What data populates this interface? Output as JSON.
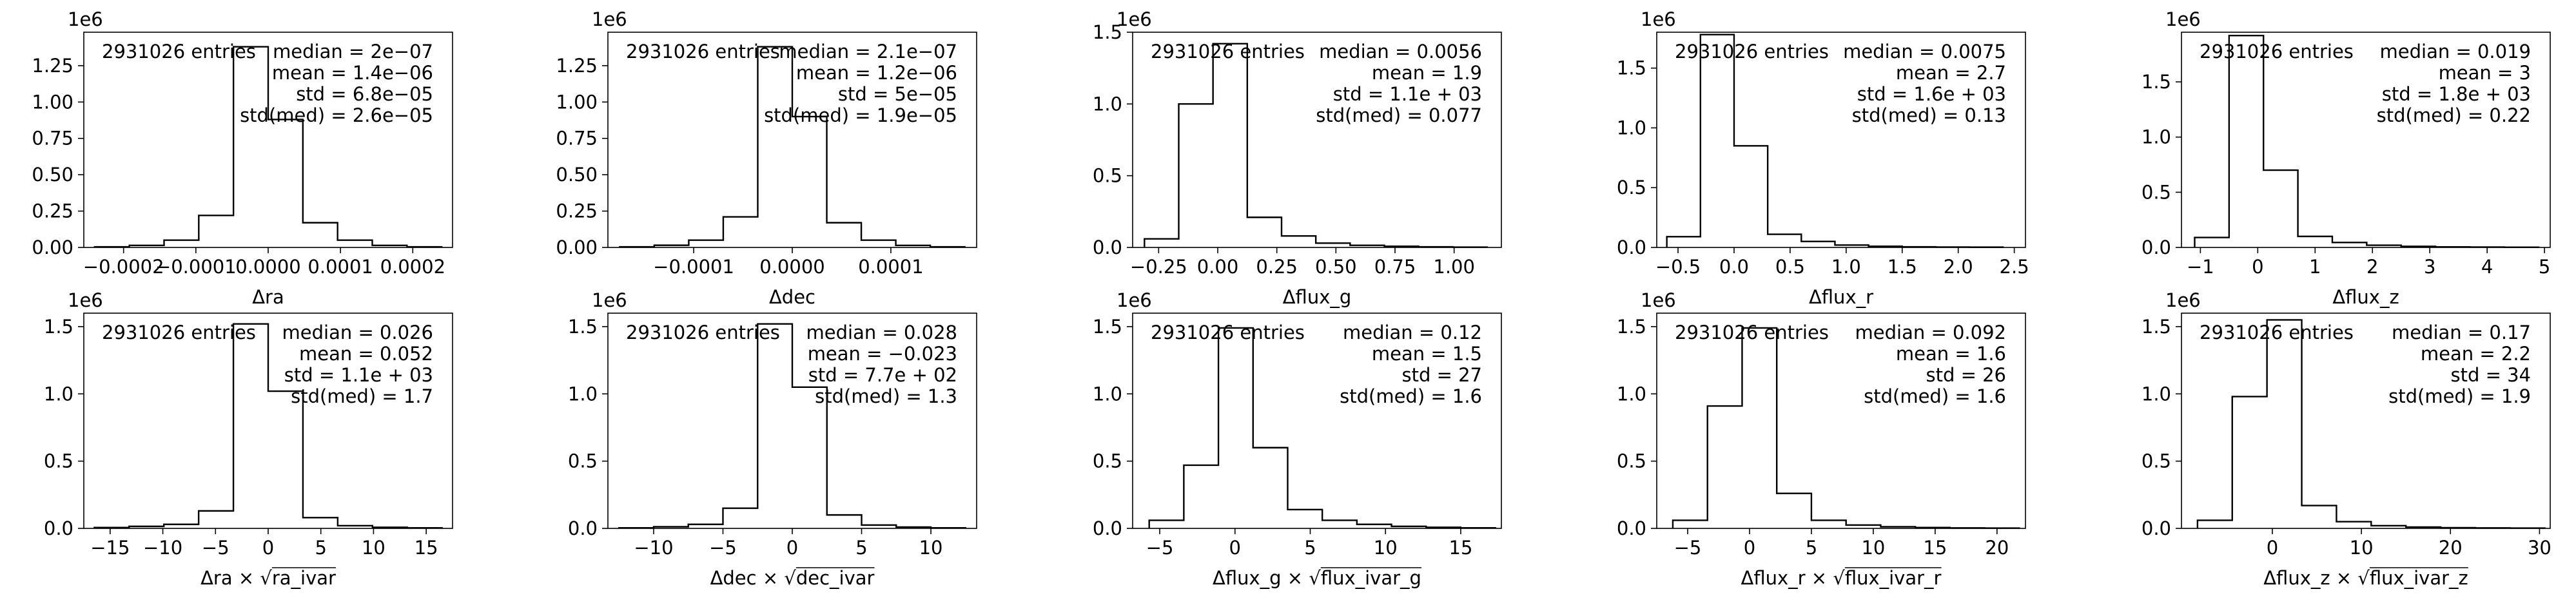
{
  "chart_data": [
    {
      "type": "histogram",
      "xlabel": "Δra",
      "xticks": [
        -0.0002,
        -0.0001,
        0.0,
        0.0001,
        0.0002
      ],
      "xtick_labels": [
        "−0.0002",
        "−0.0001",
        "0.0000",
        "0.0001",
        "0.0002"
      ],
      "xlim": [
        -0.000255,
        0.000255
      ],
      "yticks": [
        0,
        0.25,
        0.5,
        0.75,
        1.0,
        1.25
      ],
      "ytick_labels": [
        "0.00",
        "0.25",
        "0.50",
        "0.75",
        "1.00",
        "1.25"
      ],
      "ylim": [
        0,
        1.48
      ],
      "y_offset_label": "1e6",
      "entries_text": "2931026 entries",
      "stats": [
        "median = 2e−07",
        "mean = 1.4e−06",
        "std = 6.8e−05",
        "std(med) = 2.6e−05"
      ],
      "bin_edges": [
        -0.00024,
        -0.000192,
        -0.000144,
        -9.6e-05,
        -4.8e-05,
        0.0,
        4.8e-05,
        9.6e-05,
        0.000144,
        0.000192,
        0.00024
      ],
      "values": [
        0.004,
        0.014,
        0.05,
        0.22,
        1.38,
        0.88,
        0.17,
        0.05,
        0.014,
        0.004
      ]
    },
    {
      "type": "histogram",
      "xlabel": "Δdec",
      "xticks": [
        -0.0001,
        0.0,
        0.0001
      ],
      "xtick_labels": [
        "−0.0001",
        "0.0000",
        "0.0001"
      ],
      "xlim": [
        -0.000187,
        0.000187
      ],
      "yticks": [
        0,
        0.25,
        0.5,
        0.75,
        1.0,
        1.25
      ],
      "ytick_labels": [
        "0.00",
        "0.25",
        "0.50",
        "0.75",
        "1.00",
        "1.25"
      ],
      "ylim": [
        0,
        1.48
      ],
      "y_offset_label": "1e6",
      "entries_text": "2931026 entries",
      "stats": [
        "median = 2.1e−07",
        "mean = 1.2e−06",
        "std = 5e−05",
        "std(med) = 1.9e−05"
      ],
      "bin_edges": [
        -0.000175,
        -0.00014,
        -0.000105,
        -7e-05,
        -3.5e-05,
        0.0,
        3.5e-05,
        7e-05,
        0.000105,
        0.00014,
        0.000175
      ],
      "values": [
        0.004,
        0.015,
        0.05,
        0.21,
        1.38,
        0.9,
        0.17,
        0.05,
        0.014,
        0.004
      ]
    },
    {
      "type": "histogram",
      "xlabel": "Δflux_g",
      "xticks": [
        -0.25,
        0.0,
        0.25,
        0.5,
        0.75,
        1.0
      ],
      "xtick_labels": [
        "−0.25",
        "0.00",
        "0.25",
        "0.50",
        "0.75",
        "1.00"
      ],
      "xlim": [
        -0.36,
        1.2
      ],
      "yticks": [
        0,
        0.5,
        1.0,
        1.5
      ],
      "ytick_labels": [
        "0.0",
        "0.5",
        "1.0",
        "1.5"
      ],
      "ylim": [
        0,
        1.5
      ],
      "y_offset_label": "1e6",
      "entries_text": "2931026 entries",
      "stats": [
        "median = 0.0056",
        "mean = 1.9",
        "std = 1.1e + 03",
        "std(med) = 0.077"
      ],
      "bin_edges": [
        -0.31,
        -0.165,
        -0.02,
        0.125,
        0.27,
        0.415,
        0.56,
        0.705,
        0.85,
        0.995,
        1.14
      ],
      "values": [
        0.06,
        1.0,
        1.42,
        0.21,
        0.08,
        0.03,
        0.015,
        0.008,
        0.004,
        0.002
      ]
    },
    {
      "type": "histogram",
      "xlabel": "Δflux_r",
      "xticks": [
        -0.5,
        0.0,
        0.5,
        1.0,
        1.5,
        2.0,
        2.5
      ],
      "xtick_labels": [
        "−0.5",
        "0.0",
        "0.5",
        "1.0",
        "1.5",
        "2.0",
        "2.5"
      ],
      "xlim": [
        -0.69,
        2.6
      ],
      "yticks": [
        0,
        0.5,
        1.0,
        1.5
      ],
      "ytick_labels": [
        "0.0",
        "0.5",
        "1.0",
        "1.5"
      ],
      "ylim": [
        0,
        1.8
      ],
      "y_offset_label": "1e6",
      "entries_text": "2931026 entries",
      "stats": [
        "median = 0.0075",
        "mean = 2.7",
        "std = 1.6e + 03",
        "std(med) = 0.13"
      ],
      "bin_edges": [
        -0.6,
        -0.3,
        0.0,
        0.3,
        0.6,
        0.9,
        1.2,
        1.5,
        1.8,
        2.1,
        2.4
      ],
      "values": [
        0.09,
        1.78,
        0.85,
        0.11,
        0.05,
        0.02,
        0.01,
        0.005,
        0.003,
        0.002
      ]
    },
    {
      "type": "histogram",
      "xlabel": "Δflux_z",
      "xticks": [
        -1,
        0,
        1,
        2,
        3,
        4,
        5
      ],
      "xtick_labels": [
        "−1",
        "0",
        "1",
        "2",
        "3",
        "4",
        "5"
      ],
      "xlim": [
        -1.33,
        5.1
      ],
      "yticks": [
        0,
        0.5,
        1.0,
        1.5
      ],
      "ytick_labels": [
        "0.0",
        "0.5",
        "1.0",
        "1.5"
      ],
      "ylim": [
        0,
        1.95
      ],
      "y_offset_label": "1e6",
      "entries_text": "2931026 entries",
      "stats": [
        "median = 0.019",
        "mean = 3",
        "std = 1.8e + 03",
        "std(med) = 0.22"
      ],
      "bin_edges": [
        -1.1,
        -0.5,
        0.1,
        0.7,
        1.3,
        1.9,
        2.5,
        3.1,
        3.7,
        4.3,
        4.9
      ],
      "values": [
        0.09,
        1.92,
        0.7,
        0.1,
        0.045,
        0.02,
        0.01,
        0.005,
        0.003,
        0.002
      ]
    },
    {
      "type": "histogram",
      "xlabel": "Δra × √ra_ivar",
      "xticks": [
        -15,
        -10,
        -5,
        0,
        5,
        10,
        15
      ],
      "xtick_labels": [
        "−15",
        "−10",
        "−5",
        "0",
        "5",
        "10",
        "15"
      ],
      "xlim": [
        -17.5,
        17.5
      ],
      "yticks": [
        0,
        0.5,
        1.0,
        1.5
      ],
      "ytick_labels": [
        "0.0",
        "0.5",
        "1.0",
        "1.5"
      ],
      "ylim": [
        0,
        1.6
      ],
      "y_offset_label": "1e6",
      "entries_text": "2931026 entries",
      "stats": [
        "median = 0.026",
        "mean = 0.052",
        "std = 1.1e + 03",
        "std(med) = 1.7"
      ],
      "bin_edges": [
        -16.5,
        -13.2,
        -9.9,
        -6.6,
        -3.3,
        0.0,
        3.3,
        6.6,
        9.9,
        13.2,
        16.5
      ],
      "values": [
        0.006,
        0.015,
        0.03,
        0.13,
        1.52,
        1.02,
        0.08,
        0.02,
        0.008,
        0.004
      ]
    },
    {
      "type": "histogram",
      "xlabel": "Δdec × √dec_ivar",
      "xticks": [
        -10,
        -5,
        0,
        5,
        10
      ],
      "xtick_labels": [
        "−10",
        "−5",
        "0",
        "5",
        "10"
      ],
      "xlim": [
        -13.3,
        13.3
      ],
      "yticks": [
        0,
        0.5,
        1.0,
        1.5
      ],
      "ytick_labels": [
        "0.0",
        "0.5",
        "1.0",
        "1.5"
      ],
      "ylim": [
        0,
        1.6
      ],
      "y_offset_label": "1e6",
      "entries_text": "2931026 entries",
      "stats": [
        "median = 0.028",
        "mean = −0.023",
        "std = 7.7e + 02",
        "std(med) = 1.3"
      ],
      "bin_edges": [
        -12.5,
        -10.0,
        -7.5,
        -5.0,
        -2.5,
        0.0,
        2.5,
        5.0,
        7.5,
        10.0,
        12.5
      ],
      "values": [
        0.004,
        0.012,
        0.03,
        0.15,
        1.52,
        1.05,
        0.1,
        0.025,
        0.01,
        0.004
      ]
    },
    {
      "type": "histogram",
      "xlabel": "Δflux_g × √flux_ivar_g",
      "xticks": [
        -5,
        0,
        5,
        10,
        15
      ],
      "xtick_labels": [
        "−5",
        "0",
        "5",
        "10",
        "15"
      ],
      "xlim": [
        -6.8,
        17.7
      ],
      "yticks": [
        0,
        0.5,
        1.0,
        1.5
      ],
      "ytick_labels": [
        "0.0",
        "0.5",
        "1.0",
        "1.5"
      ],
      "ylim": [
        0,
        1.6
      ],
      "y_offset_label": "1e6",
      "entries_text": "2931026 entries",
      "stats": [
        "median = 0.12",
        "mean = 1.5",
        "std = 27",
        "std(med) = 1.6"
      ],
      "bin_edges": [
        -5.7,
        -3.4,
        -1.1,
        1.2,
        3.5,
        5.8,
        8.1,
        10.4,
        12.7,
        15.0,
        17.3
      ],
      "values": [
        0.06,
        0.47,
        1.49,
        0.6,
        0.14,
        0.06,
        0.03,
        0.015,
        0.008,
        0.004
      ]
    },
    {
      "type": "histogram",
      "xlabel": "Δflux_r × √flux_ivar_r",
      "xticks": [
        -5,
        0,
        5,
        10,
        15,
        20
      ],
      "xtick_labels": [
        "−5",
        "0",
        "5",
        "10",
        "15",
        "20"
      ],
      "xlim": [
        -7.5,
        22.3
      ],
      "yticks": [
        0,
        0.5,
        1.0,
        1.5
      ],
      "ytick_labels": [
        "0.0",
        "0.5",
        "1.0",
        "1.5"
      ],
      "ylim": [
        0,
        1.6
      ],
      "y_offset_label": "1e6",
      "entries_text": "2931026 entries",
      "stats": [
        "median = 0.092",
        "mean = 1.6",
        "std = 26",
        "std(med) = 1.6"
      ],
      "bin_edges": [
        -6.2,
        -3.4,
        -0.6,
        2.2,
        5.0,
        7.8,
        10.6,
        13.4,
        16.2,
        19.0,
        21.8
      ],
      "values": [
        0.06,
        0.91,
        1.49,
        0.26,
        0.06,
        0.025,
        0.012,
        0.006,
        0.003,
        0.002
      ]
    },
    {
      "type": "histogram",
      "xlabel": "Δflux_z × √flux_ivar_z",
      "xticks": [
        0,
        10,
        20,
        30
      ],
      "xtick_labels": [
        "0",
        "10",
        "20",
        "30"
      ],
      "xlim": [
        -10.2,
        31.2
      ],
      "yticks": [
        0,
        0.5,
        1.0,
        1.5
      ],
      "ytick_labels": [
        "0.0",
        "0.5",
        "1.0",
        "1.5"
      ],
      "ylim": [
        0,
        1.6
      ],
      "y_offset_label": "1e6",
      "entries_text": "2931026 entries",
      "stats": [
        "median = 0.17",
        "mean = 2.2",
        "std = 34",
        "std(med) = 1.9"
      ],
      "bin_edges": [
        -8.4,
        -4.5,
        -0.6,
        3.3,
        7.2,
        11.1,
        15.0,
        18.9,
        22.8,
        26.7,
        30.6
      ],
      "values": [
        0.06,
        0.98,
        1.55,
        0.17,
        0.05,
        0.02,
        0.01,
        0.005,
        0.003,
        0.002
      ]
    }
  ]
}
